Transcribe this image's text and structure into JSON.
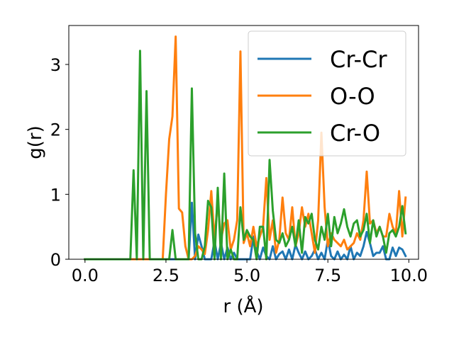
{
  "chart_data": {
    "type": "line",
    "title": "",
    "xlabel": "r (Å)",
    "ylabel": "g(r)",
    "xlim": [
      -0.5,
      10.3
    ],
    "ylim": [
      0,
      3.6
    ],
    "xticks": [
      0.0,
      2.5,
      5.0,
      7.5,
      10.0
    ],
    "xtick_labels": [
      "0.0",
      "2.5",
      "5.0",
      "7.5",
      "10.0"
    ],
    "yticks": [
      0,
      1,
      2,
      3
    ],
    "ytick_labels": [
      "0",
      "1",
      "2",
      "3"
    ],
    "grid": false,
    "legend_position": "top-right",
    "x": [
      0.0,
      0.1,
      0.2,
      0.3,
      0.4,
      0.5,
      0.6,
      0.7,
      0.8,
      0.9,
      1.0,
      1.1,
      1.2,
      1.3,
      1.4,
      1.5,
      1.6,
      1.7,
      1.8,
      1.9,
      2.0,
      2.1,
      2.2,
      2.3,
      2.4,
      2.5,
      2.6,
      2.7,
      2.8,
      2.9,
      3.0,
      3.1,
      3.2,
      3.3,
      3.4,
      3.5,
      3.6,
      3.7,
      3.8,
      3.9,
      4.0,
      4.1,
      4.2,
      4.3,
      4.4,
      4.5,
      4.6,
      4.7,
      4.8,
      4.9,
      5.0,
      5.1,
      5.2,
      5.3,
      5.4,
      5.5,
      5.6,
      5.7,
      5.8,
      5.9,
      6.0,
      6.1,
      6.2,
      6.3,
      6.4,
      6.5,
      6.6,
      6.7,
      6.8,
      6.9,
      7.0,
      7.1,
      7.2,
      7.3,
      7.4,
      7.5,
      7.6,
      7.7,
      7.8,
      7.9,
      8.0,
      8.1,
      8.2,
      8.3,
      8.4,
      8.5,
      8.6,
      8.7,
      8.8,
      8.9,
      9.0,
      9.1,
      9.2,
      9.3,
      9.4,
      9.5,
      9.6,
      9.7,
      9.8,
      9.9
    ],
    "series": [
      {
        "name": "Cr-Cr",
        "color": "#1f77b4",
        "values": [
          0,
          0,
          0,
          0,
          0,
          0,
          0,
          0,
          0,
          0,
          0,
          0,
          0,
          0,
          0,
          0,
          0,
          0,
          0,
          0,
          0,
          0,
          0,
          0,
          0,
          0,
          0,
          0,
          0,
          0,
          0,
          0,
          0,
          0.87,
          0,
          0.38,
          0.2,
          0,
          0,
          0,
          0.28,
          0,
          0.25,
          0,
          0.18,
          0,
          0.1,
          0,
          0,
          0,
          0,
          0,
          0.35,
          0.12,
          0,
          0.18,
          0.05,
          0,
          0.2,
          0,
          0.08,
          0.12,
          0,
          0.15,
          0,
          0.22,
          0.1,
          0,
          0.12,
          0,
          0.05,
          0.15,
          0,
          0.1,
          0,
          0.3,
          0.05,
          0,
          0.12,
          0,
          0.07,
          0,
          0.2,
          0,
          0.1,
          0.05,
          0.2,
          0.42,
          0.25,
          0.05,
          0.1,
          0.1,
          0.2,
          0,
          0,
          0.18,
          0.05,
          0.18,
          0.15,
          0.05
        ]
      },
      {
        "name": "O-O",
        "color": "#ff7f0e",
        "values": [
          0,
          0,
          0,
          0,
          0,
          0,
          0,
          0,
          0,
          0,
          0,
          0,
          0,
          0,
          0,
          0,
          0,
          0,
          0,
          0,
          0,
          0,
          0,
          0,
          0,
          1.0,
          1.85,
          2.2,
          3.43,
          0.78,
          0.72,
          0.2,
          0,
          0,
          0.05,
          0.2,
          0.15,
          0.08,
          0.45,
          1.05,
          0.3,
          0.9,
          0.3,
          0.55,
          0.6,
          0.15,
          0.3,
          0.6,
          3.2,
          0.25,
          0.4,
          0.2,
          0.5,
          0.2,
          0.35,
          0.5,
          1.25,
          0.3,
          0.6,
          0.1,
          0.3,
          0.95,
          0.4,
          0.3,
          0.8,
          0.2,
          0.4,
          0.8,
          0.5,
          0.7,
          0.4,
          0.1,
          0.6,
          1.95,
          0.8,
          0.2,
          0.4,
          0.3,
          0.25,
          0.2,
          0.3,
          0.15,
          0.2,
          0.25,
          0.4,
          0.3,
          0.6,
          1.35,
          0.55,
          0.6,
          0.4,
          0.5,
          0.35,
          0.35,
          0.7,
          0.5,
          0.4,
          1.05,
          0.35,
          0.95
        ]
      },
      {
        "name": "Cr-O",
        "color": "#2ca02c",
        "values": [
          0,
          0,
          0,
          0,
          0,
          0,
          0,
          0,
          0,
          0,
          0,
          0,
          0,
          0,
          0,
          1.37,
          0,
          3.21,
          0,
          2.59,
          0,
          0,
          0,
          0,
          0,
          0,
          0,
          0.45,
          0,
          0,
          0,
          0,
          0,
          2.63,
          0.4,
          0,
          0,
          0.2,
          0.9,
          0.8,
          0,
          1.1,
          0,
          1.32,
          0,
          0.15,
          0,
          0,
          0.8,
          0.3,
          0.45,
          0.35,
          0.3,
          0,
          0.5,
          0.5,
          0,
          1.53,
          0.75,
          0.3,
          0.25,
          0.4,
          0.2,
          0.3,
          0.5,
          0.2,
          0.6,
          0.1,
          0.65,
          0.55,
          0.7,
          0.3,
          0.15,
          0.5,
          0.3,
          0.7,
          0.2,
          0.65,
          0.4,
          0.55,
          0.77,
          0.5,
          0.35,
          0.55,
          0.6,
          0.35,
          0.45,
          0.7,
          0.25,
          0.6,
          0.35,
          0.5,
          0.35,
          0.1,
          0.4,
          0.45,
          0.35,
          0.5,
          0.82,
          0.4
        ]
      }
    ]
  }
}
